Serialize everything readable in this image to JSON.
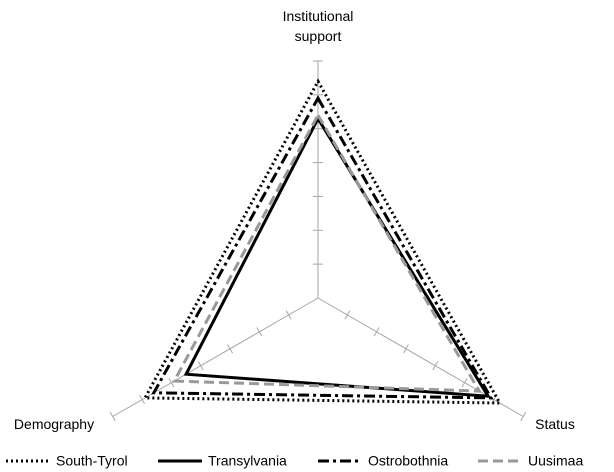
{
  "chart_data": {
    "type": "radar",
    "categories": [
      "Institutional support",
      "Status",
      "Demography"
    ],
    "rlim": [
      0,
      7
    ],
    "rticks": [
      1,
      2,
      3,
      4,
      5,
      6,
      7
    ],
    "series": [
      {
        "name": "South-Tyrol",
        "color": "#000000",
        "style": "dotted",
        "values": [
          6.4,
          6.2,
          5.9
        ]
      },
      {
        "name": "Transylvania",
        "color": "#000000",
        "style": "solid",
        "values": [
          5.3,
          5.8,
          4.5
        ]
      },
      {
        "name": "Ostrobothnia",
        "color": "#000000",
        "style": "dashdot",
        "values": [
          5.9,
          5.9,
          5.6
        ]
      },
      {
        "name": "Uusimaa",
        "color": "#999999",
        "style": "dashed",
        "values": [
          5.4,
          5.5,
          4.9
        ]
      }
    ]
  }
}
